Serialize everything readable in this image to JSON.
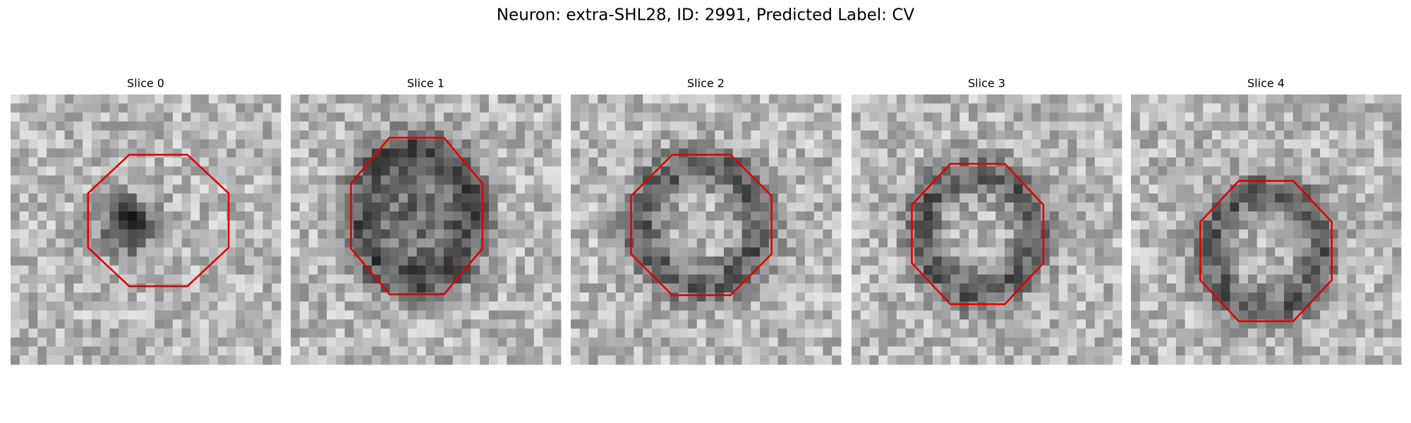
{
  "title": "Neuron: extra-SHL28, ID: 2991, Predicted Label: CV",
  "panels": [
    {
      "title": "Slice 0"
    },
    {
      "title": "Slice 1"
    },
    {
      "title": "Slice 2"
    },
    {
      "title": "Slice 3"
    },
    {
      "title": "Slice 4"
    }
  ]
}
